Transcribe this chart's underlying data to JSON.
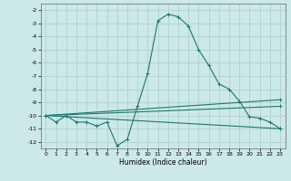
{
  "xlabel": "Humidex (Indice chaleur)",
  "xlim": [
    -0.5,
    23.5
  ],
  "ylim": [
    -12.5,
    -1.5
  ],
  "yticks": [
    -2,
    -3,
    -4,
    -5,
    -6,
    -7,
    -8,
    -9,
    -10,
    -11,
    -12
  ],
  "xticks": [
    0,
    1,
    2,
    3,
    4,
    5,
    6,
    7,
    8,
    9,
    10,
    11,
    12,
    13,
    14,
    15,
    16,
    17,
    18,
    19,
    20,
    21,
    22,
    23
  ],
  "bg_color": "#cce8e8",
  "line_color": "#1a7a6a",
  "grid_color": "#aacccc",
  "line1_x": [
    0,
    1,
    2,
    3,
    4,
    5,
    6,
    7,
    8,
    9,
    10,
    11,
    12,
    13,
    14,
    15,
    16,
    17,
    18,
    19,
    20,
    21,
    22,
    23
  ],
  "line1_y": [
    -10.0,
    -10.5,
    -10.0,
    -10.5,
    -10.5,
    -10.8,
    -10.5,
    -12.3,
    -11.8,
    -9.3,
    -6.8,
    -2.8,
    -2.3,
    -2.5,
    -3.2,
    -5.0,
    -6.2,
    -7.6,
    -8.0,
    -8.9,
    -10.1,
    -10.2,
    -10.5,
    -11.0
  ],
  "line2_x": [
    0,
    23
  ],
  "line2_y": [
    -10.0,
    -11.0
  ],
  "line3_x": [
    0,
    23
  ],
  "line3_y": [
    -10.0,
    -8.8
  ],
  "line4_x": [
    0,
    23
  ],
  "line4_y": [
    -10.0,
    -9.3
  ],
  "lw": 0.8,
  "ms": 2.5,
  "xlabel_fontsize": 5.5,
  "tick_fontsize": 4.5
}
